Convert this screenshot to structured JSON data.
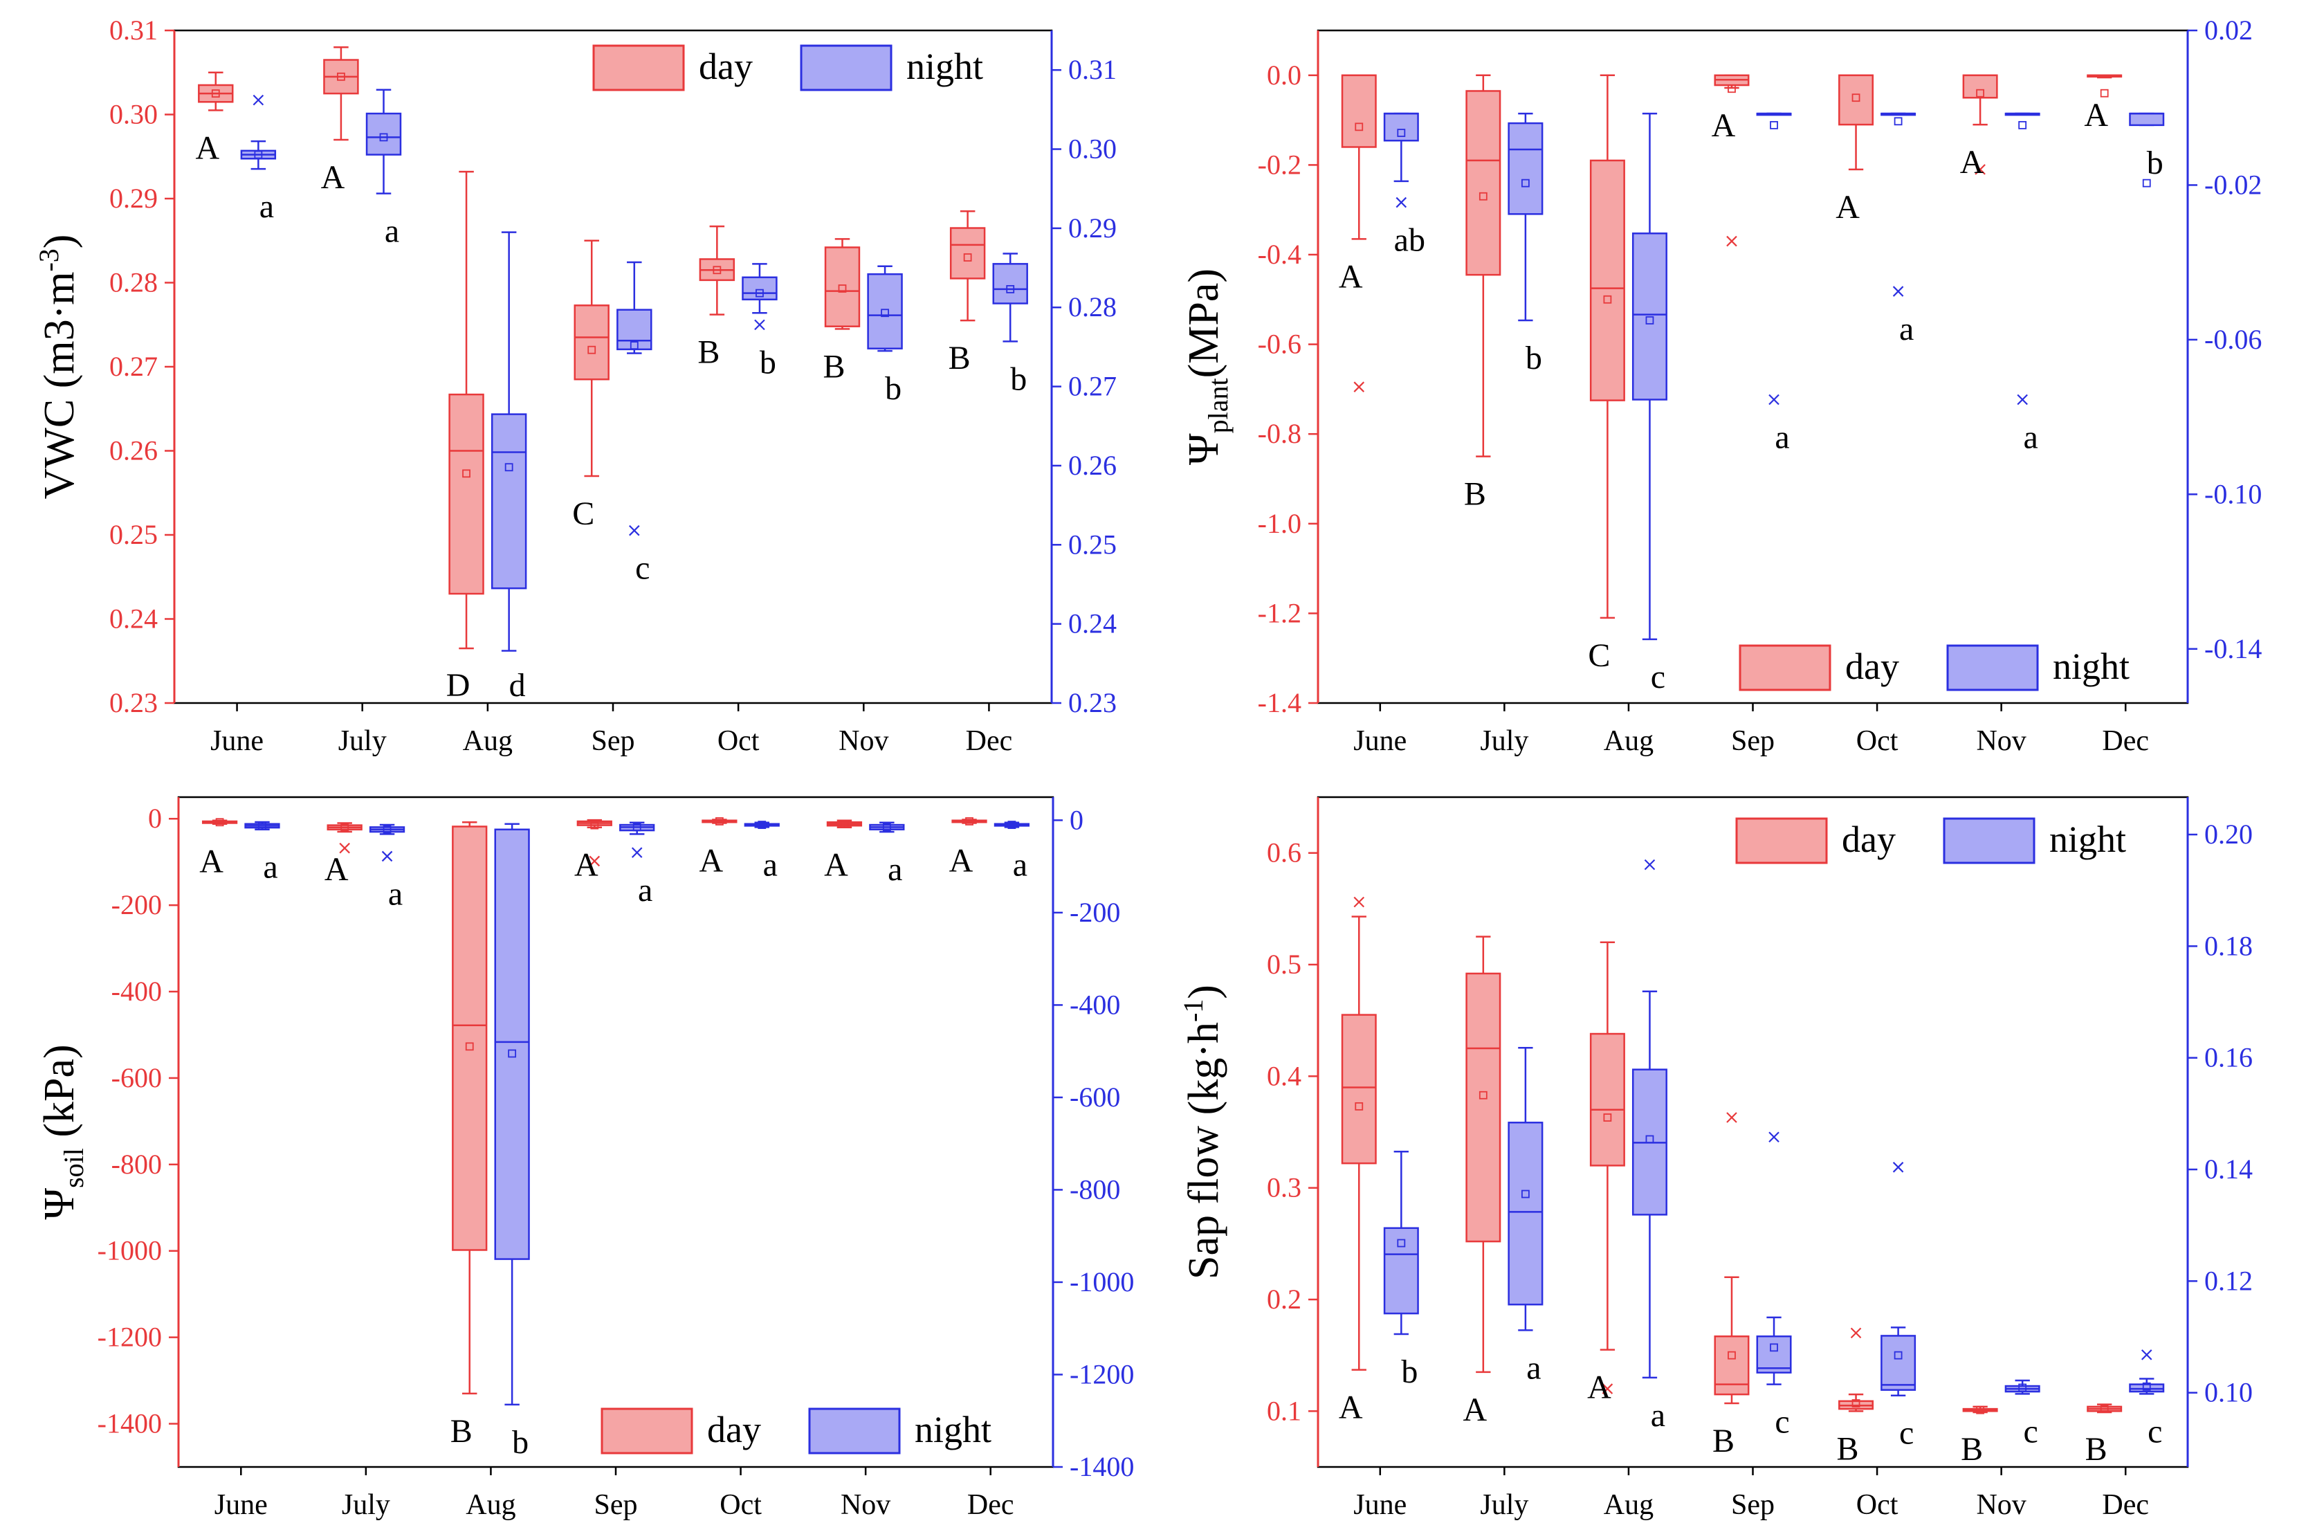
{
  "colors": {
    "day": "#e8393b",
    "night": "#2b2fe0",
    "day_fill": "#f5a5a5",
    "night_fill": "#a9a9f5",
    "frame": "#000000"
  },
  "months": [
    "June",
    "July",
    "Aug",
    "Sep",
    "Oct",
    "Nov",
    "Dec"
  ],
  "chart_data": [
    {
      "id": "vwc",
      "type": "box",
      "ylabel_left": "VWC (m3·m",
      "ylabel_left_sup": "-3",
      "ylabel_left_end": ")",
      "left_range": [
        0.23,
        0.31
      ],
      "left_ticks": [
        "0.23",
        "0.24",
        "0.25",
        "0.26",
        "0.27",
        "0.28",
        "0.29",
        "0.30",
        "0.31"
      ],
      "right_range": [
        0.23,
        0.315
      ],
      "right_ticks": [
        "0.23",
        "0.24",
        "0.25",
        "0.26",
        "0.27",
        "0.28",
        "0.29",
        "0.30",
        "0.31"
      ],
      "legend": {
        "day": "day",
        "night": "night",
        "position": "top-right"
      },
      "day": [
        {
          "min": 0.3005,
          "q1": 0.3015,
          "med": 0.3025,
          "q3": 0.3035,
          "max": 0.305,
          "mean": 0.3025,
          "out": [],
          "letter": "A"
        },
        {
          "min": 0.297,
          "q1": 0.3025,
          "med": 0.3045,
          "q3": 0.3065,
          "max": 0.308,
          "mean": 0.3045,
          "out": [],
          "letter": "A"
        },
        {
          "min": 0.2365,
          "q1": 0.243,
          "med": 0.26,
          "q3": 0.2667,
          "max": 0.2932,
          "mean": 0.2573,
          "out": [],
          "letter": "D"
        },
        {
          "min": 0.257,
          "q1": 0.2685,
          "med": 0.2735,
          "q3": 0.2773,
          "max": 0.285,
          "mean": 0.272,
          "out": [],
          "letter": "C"
        },
        {
          "min": 0.2762,
          "q1": 0.2803,
          "med": 0.2815,
          "q3": 0.2828,
          "max": 0.2867,
          "mean": 0.2815,
          "out": [],
          "letter": "B"
        },
        {
          "min": 0.2745,
          "q1": 0.2748,
          "med": 0.279,
          "q3": 0.2842,
          "max": 0.2852,
          "mean": 0.2793,
          "out": [],
          "letter": "B"
        },
        {
          "min": 0.2755,
          "q1": 0.2805,
          "med": 0.2845,
          "q3": 0.2865,
          "max": 0.2885,
          "mean": 0.283,
          "out": [],
          "letter": "B"
        }
      ],
      "night": [
        {
          "min": 0.2975,
          "q1": 0.2988,
          "med": 0.2993,
          "q3": 0.2998,
          "max": 0.301,
          "mean": 0.2993,
          "out": [
            0.3062
          ],
          "letter": "a"
        },
        {
          "min": 0.2944,
          "q1": 0.2993,
          "med": 0.3015,
          "q3": 0.3045,
          "max": 0.3075,
          "mean": 0.3015,
          "out": [],
          "letter": "a"
        },
        {
          "min": 0.2366,
          "q1": 0.2445,
          "med": 0.2617,
          "q3": 0.2665,
          "max": 0.2895,
          "mean": 0.2598,
          "out": [],
          "letter": "d"
        },
        {
          "min": 0.2742,
          "q1": 0.2747,
          "med": 0.2758,
          "q3": 0.2797,
          "max": 0.2857,
          "mean": 0.2752,
          "out": [
            0.2518
          ],
          "letter": "c"
        },
        {
          "min": 0.2793,
          "q1": 0.281,
          "med": 0.2818,
          "q3": 0.2838,
          "max": 0.2855,
          "mean": 0.2818,
          "out": [
            0.2778
          ],
          "letter": "b"
        },
        {
          "min": 0.2745,
          "q1": 0.2748,
          "med": 0.279,
          "q3": 0.2842,
          "max": 0.2852,
          "mean": 0.2793,
          "out": [],
          "letter": "b"
        },
        {
          "min": 0.2757,
          "q1": 0.2805,
          "med": 0.2823,
          "q3": 0.2855,
          "max": 0.2868,
          "mean": 0.2823,
          "out": [],
          "letter": "b"
        }
      ]
    },
    {
      "id": "psi_plant",
      "type": "box",
      "ylabel_left": "Ψ",
      "ylabel_left_sub": "plant",
      "ylabel_left_end": "(MPa)",
      "left_range": [
        -1.4,
        0.1
      ],
      "left_ticks": [
        "-1.4",
        "-1.2",
        "-1.0",
        "-0.8",
        "-0.6",
        "-0.4",
        "-0.2",
        "0.0"
      ],
      "right_range": [
        -0.154,
        0.02
      ],
      "right_ticks": [
        "-0.14",
        "-0.10",
        "-0.06",
        "-0.02",
        "0.02"
      ],
      "legend": {
        "day": "day",
        "night": "night",
        "position": "bottom-right"
      },
      "day": [
        {
          "min": -0.365,
          "q1": -0.16,
          "med": 0.0,
          "q3": 0.0,
          "max": 0.0,
          "mean": -0.115,
          "out": [
            -0.695
          ],
          "letter": "A"
        },
        {
          "min": -0.85,
          "q1": -0.445,
          "med": -0.19,
          "q3": -0.035,
          "max": 0.0,
          "mean": -0.27,
          "out": [],
          "letter": "B"
        },
        {
          "min": -1.21,
          "q1": -0.725,
          "med": -0.475,
          "q3": -0.19,
          "max": 0.0,
          "mean": -0.5,
          "out": [],
          "letter": "C"
        },
        {
          "min": -0.028,
          "q1": -0.022,
          "med": -0.01,
          "q3": 0.0,
          "max": 0.0,
          "mean": -0.03,
          "out": [
            -0.37
          ],
          "letter": "A"
        },
        {
          "min": -0.21,
          "q1": -0.11,
          "med": 0.0,
          "q3": 0.0,
          "max": 0.0,
          "mean": -0.05,
          "out": [],
          "letter": "A"
        },
        {
          "min": -0.11,
          "q1": -0.05,
          "med": 0.0,
          "q3": 0.0,
          "max": 0.0,
          "mean": -0.04,
          "out": [
            -0.21
          ],
          "letter": "A"
        },
        {
          "min": -0.005,
          "q1": -0.003,
          "med": 0.0,
          "q3": 0.0,
          "max": 0.0,
          "mean": -0.04,
          "out": [],
          "letter": "A"
        }
      ],
      "night": [
        {
          "min": -0.019,
          "q1": -0.0085,
          "med": -0.0015,
          "q3": -0.0015,
          "max": -0.0015,
          "mean": -0.0065,
          "out": [
            -0.0245
          ],
          "letter": "ab"
        },
        {
          "min": -0.055,
          "q1": -0.0275,
          "med": -0.0108,
          "q3": -0.004,
          "max": -0.0015,
          "mean": -0.0195,
          "out": [],
          "letter": "b"
        },
        {
          "min": -0.1375,
          "q1": -0.0755,
          "med": -0.0535,
          "q3": -0.0325,
          "max": -0.0015,
          "mean": -0.055,
          "out": [],
          "letter": "c"
        },
        {
          "min": -0.0015,
          "q1": -0.0015,
          "med": -0.0015,
          "q3": -0.0015,
          "max": -0.0015,
          "mean": -0.0045,
          "out": [
            -0.0755
          ],
          "letter": "a"
        },
        {
          "min": -0.0015,
          "q1": -0.0015,
          "med": -0.0015,
          "q3": -0.0015,
          "max": -0.0015,
          "mean": -0.0035,
          "out": [
            -0.0475
          ],
          "letter": "a"
        },
        {
          "min": -0.0015,
          "q1": -0.0015,
          "med": -0.0015,
          "q3": -0.0015,
          "max": -0.0015,
          "mean": -0.0045,
          "out": [
            -0.0755
          ],
          "letter": "a"
        },
        {
          "min": -0.0045,
          "q1": -0.0045,
          "med": -0.0015,
          "q3": -0.0015,
          "max": -0.0015,
          "mean": -0.0195,
          "out": [],
          "letter": "b"
        }
      ]
    },
    {
      "id": "psi_soil",
      "type": "box",
      "ylabel_left": "Ψ",
      "ylabel_left_sub": "soil",
      "ylabel_left_end": " (kPa)",
      "left_range": [
        -1500,
        50
      ],
      "left_ticks": [
        "-1400",
        "-1200",
        "-1000",
        "-800",
        "-600",
        "-400",
        "-200",
        "0"
      ],
      "right_range": [
        -1400,
        50
      ],
      "right_ticks": [
        "-1400",
        "-1200",
        "-1000",
        "-800",
        "-600",
        "-400",
        "-200",
        "0"
      ],
      "legend": {
        "day": "day",
        "night": "night",
        "position": "bottom-right"
      },
      "day": [
        {
          "min": -12,
          "q1": -10,
          "med": -8,
          "q3": -6,
          "max": -4,
          "mean": -8,
          "out": [],
          "letter": "A"
        },
        {
          "min": -30,
          "q1": -25,
          "med": -20,
          "q3": -15,
          "max": -10,
          "mean": -20,
          "out": [
            -68
          ],
          "letter": "A"
        },
        {
          "min": -1330,
          "q1": -998,
          "med": -478,
          "q3": -18,
          "max": -8,
          "mean": -527,
          "out": [],
          "letter": "B"
        },
        {
          "min": -20,
          "q1": -15,
          "med": -10,
          "q3": -6,
          "max": -3,
          "mean": -15,
          "out": [
            -98
          ],
          "letter": "A"
        },
        {
          "min": -10,
          "q1": -8,
          "med": -6,
          "q3": -4,
          "max": -2,
          "mean": -6,
          "out": [],
          "letter": "A"
        },
        {
          "min": -20,
          "q1": -16,
          "med": -12,
          "q3": -8,
          "max": -4,
          "mean": -12,
          "out": [],
          "letter": "A"
        },
        {
          "min": -10,
          "q1": -8,
          "med": -6,
          "q3": -4,
          "max": -2,
          "mean": -6,
          "out": [],
          "letter": "A"
        }
      ],
      "night": [
        {
          "min": -20,
          "q1": -16,
          "med": -12,
          "q3": -8,
          "max": -4,
          "mean": -12,
          "out": [],
          "letter": "a"
        },
        {
          "min": -30,
          "q1": -25,
          "med": -20,
          "q3": -15,
          "max": -10,
          "mean": -20,
          "out": [
            -78
          ],
          "letter": "a"
        },
        {
          "min": -1265,
          "q1": -950,
          "med": -480,
          "q3": -20,
          "max": -8,
          "mean": -505,
          "out": [],
          "letter": "b"
        },
        {
          "min": -30,
          "q1": -22,
          "med": -15,
          "q3": -10,
          "max": -5,
          "mean": -15,
          "out": [
            -70
          ],
          "letter": "a"
        },
        {
          "min": -15,
          "q1": -12,
          "med": -10,
          "q3": -8,
          "max": -5,
          "mean": -10,
          "out": [],
          "letter": "a"
        },
        {
          "min": -25,
          "q1": -20,
          "med": -15,
          "q3": -10,
          "max": -5,
          "mean": -15,
          "out": [],
          "letter": "a"
        },
        {
          "min": -15,
          "q1": -12,
          "med": -10,
          "q3": -8,
          "max": -5,
          "mean": -10,
          "out": [],
          "letter": "a"
        }
      ]
    },
    {
      "id": "sap_flow",
      "type": "box",
      "ylabel_left": "Sap flow (kg·h",
      "ylabel_left_sup": "-1",
      "ylabel_left_end": ")",
      "left_range": [
        0.05,
        0.65
      ],
      "left_ticks": [
        "0.1",
        "0.2",
        "0.3",
        "0.4",
        "0.5",
        "0.6"
      ],
      "right_range": [
        0.0867,
        0.2067
      ],
      "right_ticks": [
        "0.10",
        "0.12",
        "0.14",
        "0.16",
        "0.18",
        "0.20"
      ],
      "legend": {
        "day": "day",
        "night": "night",
        "position": "top-right"
      },
      "day": [
        {
          "min": 0.137,
          "q1": 0.322,
          "med": 0.39,
          "q3": 0.455,
          "max": 0.543,
          "mean": 0.373,
          "out": [
            0.556
          ],
          "letter": "A"
        },
        {
          "min": 0.135,
          "q1": 0.252,
          "med": 0.425,
          "q3": 0.492,
          "max": 0.525,
          "mean": 0.383,
          "out": [],
          "letter": "A"
        },
        {
          "min": 0.155,
          "q1": 0.32,
          "med": 0.37,
          "q3": 0.438,
          "max": 0.52,
          "mean": 0.363,
          "out": [
            0.12
          ],
          "letter": "A"
        },
        {
          "min": 0.107,
          "q1": 0.115,
          "med": 0.124,
          "q3": 0.167,
          "max": 0.22,
          "mean": 0.15,
          "out": [
            0.363
          ],
          "letter": "B"
        },
        {
          "min": 0.1,
          "q1": 0.102,
          "med": 0.105,
          "q3": 0.109,
          "max": 0.115,
          "mean": 0.107,
          "out": [
            0.17
          ],
          "letter": "B"
        },
        {
          "min": 0.099,
          "q1": 0.1,
          "med": 0.101,
          "q3": 0.102,
          "max": 0.104,
          "mean": 0.101,
          "out": [],
          "letter": "B"
        },
        {
          "min": 0.099,
          "q1": 0.1,
          "med": 0.102,
          "q3": 0.104,
          "max": 0.106,
          "mean": 0.102,
          "out": [],
          "letter": "B"
        }
      ],
      "night": [
        {
          "min": 0.1105,
          "q1": 0.1142,
          "med": 0.1248,
          "q3": 0.1295,
          "max": 0.1432,
          "mean": 0.1268,
          "out": [],
          "letter": "b"
        },
        {
          "min": 0.1112,
          "q1": 0.1158,
          "med": 0.1324,
          "q3": 0.1484,
          "max": 0.1618,
          "mean": 0.1356,
          "out": [],
          "letter": "a"
        },
        {
          "min": 0.1027,
          "q1": 0.1319,
          "med": 0.1448,
          "q3": 0.1579,
          "max": 0.1719,
          "mean": 0.1454,
          "out": [
            0.1946
          ],
          "letter": "a"
        },
        {
          "min": 0.1015,
          "q1": 0.1036,
          "med": 0.1044,
          "q3": 0.1101,
          "max": 0.1135,
          "mean": 0.1081,
          "out": [
            0.1458
          ],
          "letter": "c"
        },
        {
          "min": 0.0995,
          "q1": 0.1005,
          "med": 0.1014,
          "q3": 0.1102,
          "max": 0.1117,
          "mean": 0.1067,
          "out": [
            0.1404
          ],
          "letter": "c"
        },
        {
          "min": 0.0998,
          "q1": 0.1002,
          "med": 0.1007,
          "q3": 0.1012,
          "max": 0.1022,
          "mean": 0.1009,
          "out": [],
          "letter": "c"
        },
        {
          "min": 0.0998,
          "q1": 0.1002,
          "med": 0.1007,
          "q3": 0.1015,
          "max": 0.1025,
          "mean": 0.1011,
          "out": [
            0.1068
          ],
          "letter": "c"
        }
      ]
    }
  ]
}
